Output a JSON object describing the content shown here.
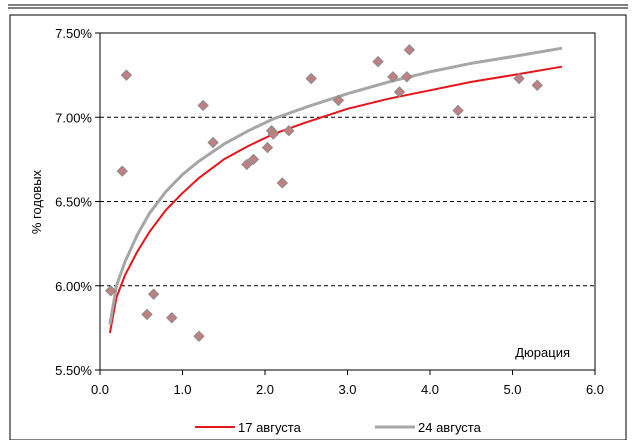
{
  "chart_data": {
    "type": "scatter",
    "ylabel": "% годовых",
    "xlabel": "Дюрация",
    "xlim": [
      0,
      6
    ],
    "ylim": [
      5.5,
      7.5
    ],
    "x_ticks": [
      "0.0",
      "1.0",
      "2.0",
      "3.0",
      "4.0",
      "5.0",
      "6.0"
    ],
    "y_ticks": [
      "5.50%",
      "6.00%",
      "6.50%",
      "7.00%",
      "7.50%"
    ],
    "y_tick_values": [
      5.5,
      6.0,
      6.5,
      7.0,
      7.5
    ],
    "x_tick_values": [
      0,
      1,
      2,
      3,
      4,
      5,
      6
    ],
    "grid": "horizontal-dashed",
    "legend_position": "bottom",
    "colors": {
      "series_17": "#e8141a",
      "series_24": "#a6a6a6",
      "marker_fill": "#c07f80",
      "marker_stroke": "#8b8b8b"
    },
    "points": [
      {
        "x": 0.13,
        "y": 5.97
      },
      {
        "x": 0.27,
        "y": 6.68
      },
      {
        "x": 0.32,
        "y": 7.25
      },
      {
        "x": 0.57,
        "y": 5.83
      },
      {
        "x": 0.65,
        "y": 5.95
      },
      {
        "x": 0.87,
        "y": 5.81
      },
      {
        "x": 1.2,
        "y": 5.7
      },
      {
        "x": 1.25,
        "y": 7.07
      },
      {
        "x": 1.37,
        "y": 6.85
      },
      {
        "x": 1.78,
        "y": 6.72
      },
      {
        "x": 1.86,
        "y": 6.75
      },
      {
        "x": 2.03,
        "y": 6.82
      },
      {
        "x": 2.08,
        "y": 6.92
      },
      {
        "x": 2.1,
        "y": 6.9
      },
      {
        "x": 2.21,
        "y": 6.61
      },
      {
        "x": 2.29,
        "y": 6.92
      },
      {
        "x": 2.56,
        "y": 7.23
      },
      {
        "x": 2.89,
        "y": 7.1
      },
      {
        "x": 3.37,
        "y": 7.33
      },
      {
        "x": 3.55,
        "y": 7.24
      },
      {
        "x": 3.63,
        "y": 7.15
      },
      {
        "x": 3.72,
        "y": 7.24
      },
      {
        "x": 3.75,
        "y": 7.4
      },
      {
        "x": 4.34,
        "y": 7.04
      },
      {
        "x": 5.08,
        "y": 7.23
      },
      {
        "x": 5.3,
        "y": 7.19
      }
    ],
    "series": [
      {
        "name": "17 августа",
        "x": [
          0.12,
          0.2,
          0.3,
          0.45,
          0.6,
          0.8,
          1.0,
          1.2,
          1.5,
          1.8,
          2.1,
          2.5,
          3.0,
          3.5,
          4.0,
          4.5,
          5.0,
          5.6
        ],
        "y": [
          5.72,
          5.93,
          6.06,
          6.2,
          6.32,
          6.45,
          6.55,
          6.64,
          6.75,
          6.83,
          6.9,
          6.97,
          7.05,
          7.11,
          7.16,
          7.21,
          7.25,
          7.3
        ]
      },
      {
        "name": "24 августа",
        "x": [
          0.12,
          0.2,
          0.3,
          0.45,
          0.6,
          0.8,
          1.0,
          1.2,
          1.5,
          1.8,
          2.1,
          2.5,
          3.0,
          3.5,
          4.0,
          4.5,
          5.0,
          5.6
        ],
        "y": [
          5.77,
          6.0,
          6.14,
          6.3,
          6.43,
          6.56,
          6.66,
          6.74,
          6.84,
          6.92,
          6.99,
          7.06,
          7.14,
          7.21,
          7.27,
          7.32,
          7.36,
          7.41
        ]
      }
    ]
  }
}
